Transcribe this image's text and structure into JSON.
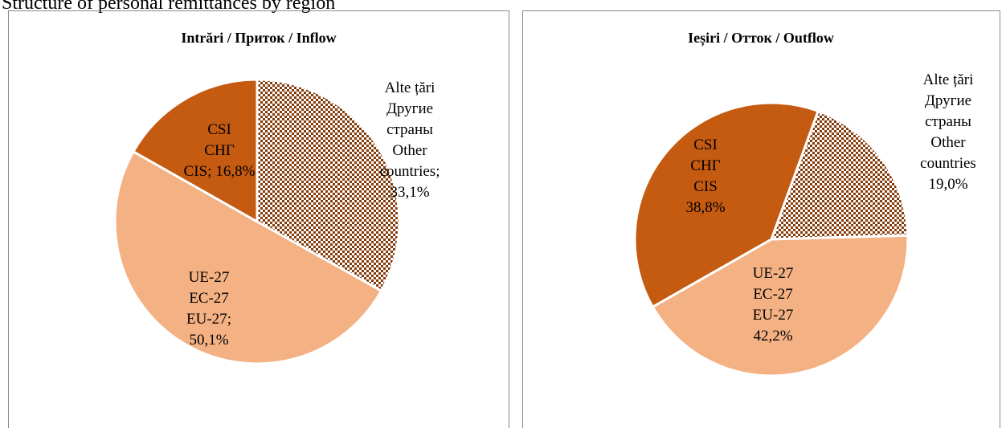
{
  "title": "Structure of personal remittances by region",
  "chart_data": [
    {
      "type": "pie",
      "title": "Intrări / Приток / Inflow",
      "categories": [
        "Alte țări\nДругие\nстраны\nOther\ncountries",
        "UE-27\nEC-27\nEU-27",
        "CSI\nСНГ\nCIS"
      ],
      "values": [
        33.1,
        50.1,
        16.8
      ],
      "value_labels": [
        "33,1%",
        "50,1%",
        "16,8%"
      ],
      "label_separator": ";",
      "colors": [
        "#843c0c",
        "#f4b183",
        "#c55a11"
      ],
      "patterns": [
        "checker",
        "none",
        "none"
      ]
    },
    {
      "type": "pie",
      "title": "Ieșiri / Отток / Outflow",
      "categories": [
        "Alte țări\nДругие\nстраны\nOther\ncountries",
        "UE-27\nEC-27\nEU-27",
        "CSI\nСНГ\nCIS"
      ],
      "values": [
        19.0,
        42.2,
        38.8
      ],
      "value_labels": [
        "19,0%",
        "42,2%",
        "38,8%"
      ],
      "colors": [
        "#843c0c",
        "#f4b183",
        "#c55a11"
      ],
      "patterns": [
        "checker",
        "none",
        "none"
      ]
    }
  ]
}
